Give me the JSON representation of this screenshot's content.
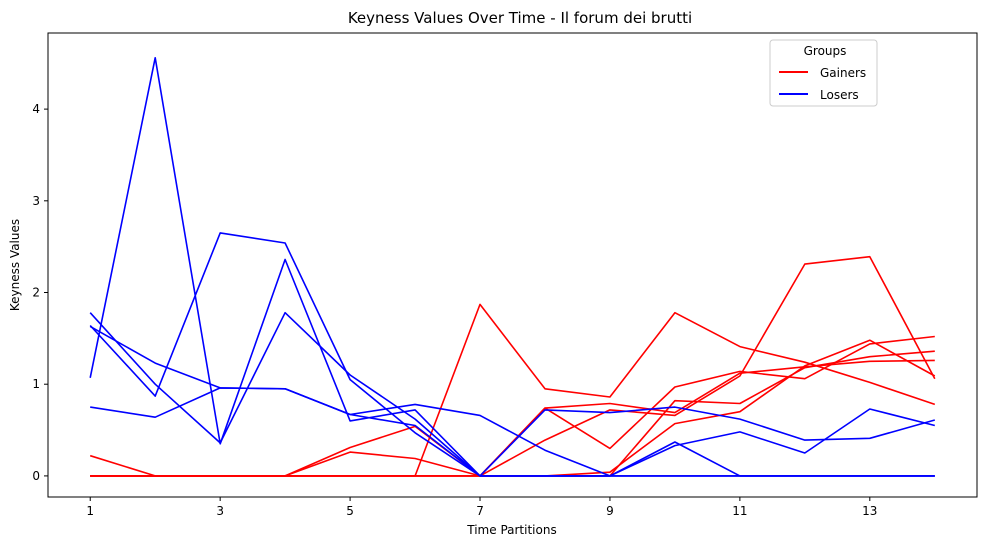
{
  "chart_data": {
    "type": "line",
    "title": "Keyness Values Over Time - Il forum dei brutti",
    "xlabel": "Time Partitions",
    "ylabel": "Keyness Values",
    "xlim": [
      0.35,
      14.65
    ],
    "ylim": [
      -0.23,
      4.83
    ],
    "xticks": [
      1,
      3,
      5,
      7,
      9,
      11,
      13
    ],
    "yticks": [
      0,
      1,
      2,
      3,
      4
    ],
    "grid": false,
    "legend": {
      "title": "Groups",
      "placement": "upper-right",
      "entries": [
        {
          "label": "Gainers",
          "color": "#ff0000"
        },
        {
          "label": "Losers",
          "color": "#0000ff"
        }
      ]
    },
    "x": [
      1,
      2,
      3,
      4,
      5,
      6,
      7,
      8,
      9,
      10,
      11,
      12,
      13,
      14
    ],
    "series": [
      {
        "group": "Gainers",
        "color": "#ff0000",
        "values": [
          0,
          0,
          0,
          0,
          0,
          0,
          1.87,
          0.95,
          0.86,
          1.78,
          1.41,
          1.24,
          1.02,
          0.78
        ]
      },
      {
        "group": "Gainers",
        "color": "#ff0000",
        "values": [
          0.22,
          0,
          0,
          0,
          0.31,
          0.54,
          0,
          0.39,
          0.72,
          0.66,
          1.09,
          2.31,
          2.39,
          1.06
        ]
      },
      {
        "group": "Gainers",
        "color": "#ff0000",
        "values": [
          0,
          0,
          0,
          0,
          0.26,
          0.19,
          0,
          0.74,
          0.3,
          0.97,
          1.14,
          1.06,
          1.44,
          1.52
        ]
      },
      {
        "group": "Gainers",
        "color": "#ff0000",
        "values": [
          0,
          0,
          0,
          0,
          0,
          0,
          0,
          0,
          0.04,
          0.57,
          0.7,
          1.2,
          1.48,
          1.09
        ]
      },
      {
        "group": "Gainers",
        "color": "#ff0000",
        "values": [
          0,
          0,
          0,
          0,
          0,
          0,
          0,
          0,
          0,
          0.82,
          0.79,
          1.18,
          1.3,
          1.36
        ]
      },
      {
        "group": "Gainers",
        "color": "#ff0000",
        "values": [
          0,
          0,
          0,
          0,
          0,
          0,
          0,
          0.74,
          0.79,
          0.69,
          1.12,
          1.19,
          1.25,
          1.26
        ]
      },
      {
        "group": "Losers",
        "color": "#0000ff",
        "values": [
          1.07,
          4.56,
          0.35,
          2.36,
          0.6,
          0.72,
          0,
          0,
          0,
          0,
          0,
          0,
          0,
          0
        ]
      },
      {
        "group": "Losers",
        "color": "#0000ff",
        "values": [
          1.64,
          0.87,
          2.65,
          2.54,
          1.05,
          0.47,
          0,
          0,
          0,
          0,
          0,
          0,
          0,
          0
        ]
      },
      {
        "group": "Losers",
        "color": "#0000ff",
        "values": [
          0.75,
          0.64,
          0.96,
          0.95,
          0.67,
          0.78,
          0.66,
          0.28,
          0,
          0.37,
          0,
          0,
          0,
          0
        ]
      },
      {
        "group": "Losers",
        "color": "#0000ff",
        "values": [
          1.78,
          1.0,
          0.36,
          1.78,
          1.1,
          0.62,
          0,
          0.72,
          0.69,
          0.75,
          0.62,
          0.39,
          0.41,
          0.61
        ]
      },
      {
        "group": "Losers",
        "color": "#0000ff",
        "values": [
          1.63,
          1.23,
          0.96,
          0.95,
          0.67,
          0.55,
          0,
          0,
          0,
          0.33,
          0.48,
          0.25,
          0.73,
          0.55
        ]
      }
    ]
  }
}
